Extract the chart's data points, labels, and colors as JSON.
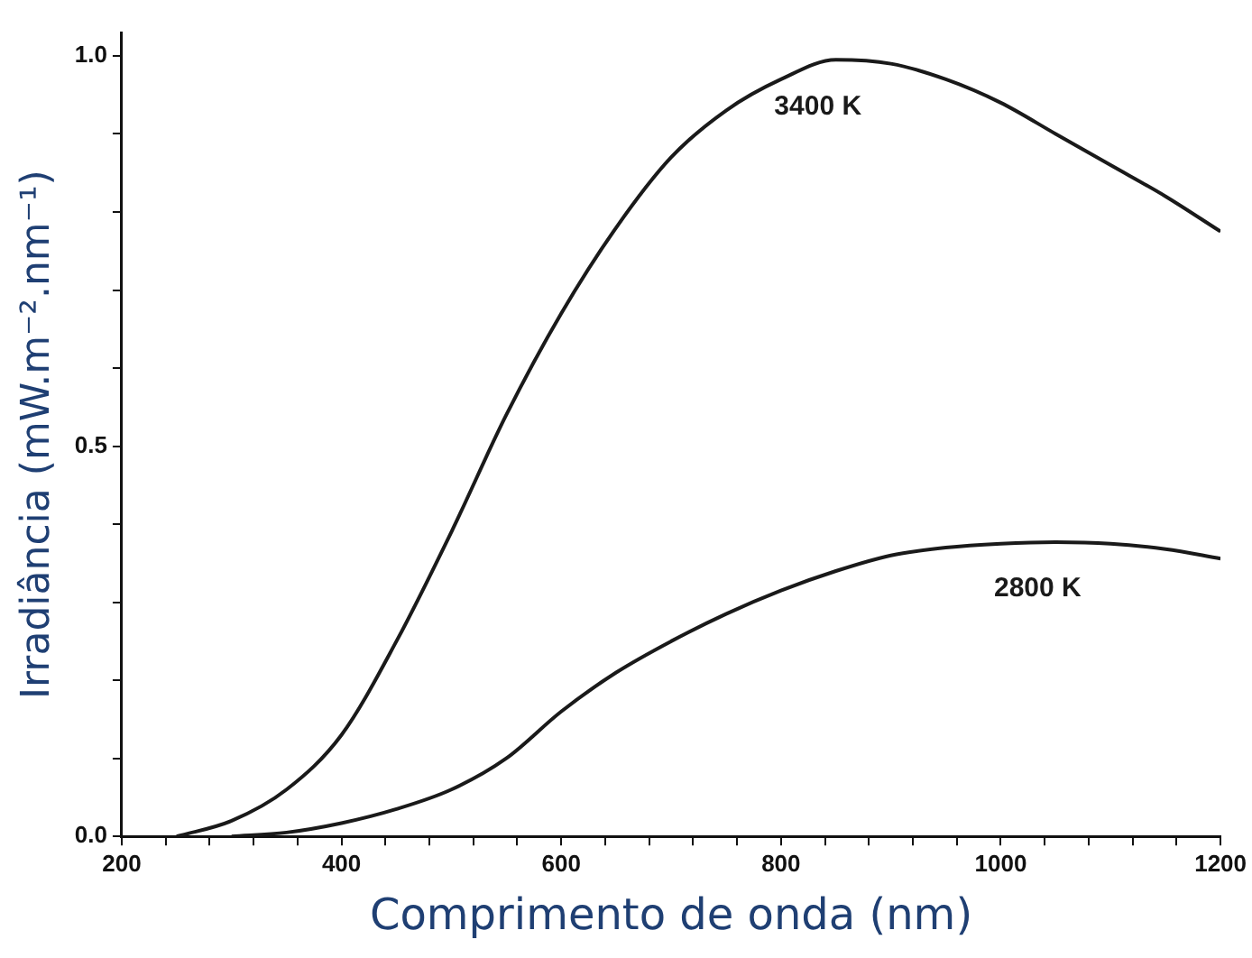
{
  "chart_data": {
    "type": "line",
    "xlabel": "Comprimento de onda (nm)",
    "ylabel": "Irradiância (mW.m⁻².nm⁻¹)",
    "xlim": [
      200,
      1200
    ],
    "ylim": [
      0,
      1.03
    ],
    "xticks": [
      200,
      {
        "value": 240,
        "label": null
      },
      {
        "value": 280,
        "label": null
      },
      {
        "value": 320,
        "label": null
      },
      {
        "value": 360,
        "label": null
      },
      400,
      {
        "value": 440,
        "label": null
      },
      {
        "value": 480,
        "label": null
      },
      {
        "value": 520,
        "label": null
      },
      {
        "value": 560,
        "label": null
      },
      600,
      {
        "value": 640,
        "label": null
      },
      {
        "value": 680,
        "label": null
      },
      {
        "value": 720,
        "label": null
      },
      {
        "value": 760,
        "label": null
      },
      800,
      {
        "value": 840,
        "label": null
      },
      {
        "value": 880,
        "label": null
      },
      {
        "value": 920,
        "label": null
      },
      {
        "value": 960,
        "label": null
      },
      1000,
      {
        "value": 1040,
        "label": null
      },
      {
        "value": 1080,
        "label": null
      },
      {
        "value": 1120,
        "label": null
      },
      {
        "value": 1160,
        "label": null
      },
      1200
    ],
    "yticks": [
      {
        "value": 0,
        "label": "0.0"
      },
      {
        "value": 0.1,
        "label": null
      },
      {
        "value": 0.2,
        "label": null
      },
      {
        "value": 0.3,
        "label": null
      },
      {
        "value": 0.4,
        "label": null
      },
      0.5,
      {
        "value": 0.6,
        "label": null
      },
      {
        "value": 0.7,
        "label": null
      },
      {
        "value": 0.8,
        "label": null
      },
      {
        "value": 0.9,
        "label": null
      },
      {
        "value": 1,
        "label": "1.0"
      }
    ],
    "x": [
      250,
      300,
      350,
      400,
      450,
      500,
      550,
      600,
      650,
      700,
      750,
      800,
      850,
      900,
      950,
      1000,
      1050,
      1100,
      1150,
      1200
    ],
    "series": [
      {
        "name": "3400 K",
        "color": "#1a1a1a",
        "values": [
          0,
          0.02,
          0.06,
          0.13,
          0.25,
          0.39,
          0.54,
          0.67,
          0.78,
          0.87,
          0.93,
          0.97,
          0.995,
          0.99,
          0.97,
          0.94,
          0.9,
          0.86,
          0.82,
          0.775
        ]
      },
      {
        "name": "2800 K",
        "color": "#1a1a1a",
        "x": [
          300,
          350,
          400,
          450,
          500,
          550,
          600,
          650,
          700,
          750,
          800,
          850,
          900,
          950,
          1000,
          1050,
          1100,
          1150,
          1200
        ],
        "values": [
          0,
          0.005,
          0.017,
          0.035,
          0.06,
          0.1,
          0.16,
          0.21,
          0.25,
          0.285,
          0.315,
          0.34,
          0.36,
          0.37,
          0.375,
          0.377,
          0.375,
          0.368,
          0.356
        ]
      }
    ],
    "grid": false,
    "legend": false,
    "marker": "none",
    "line_style": "solid"
  }
}
